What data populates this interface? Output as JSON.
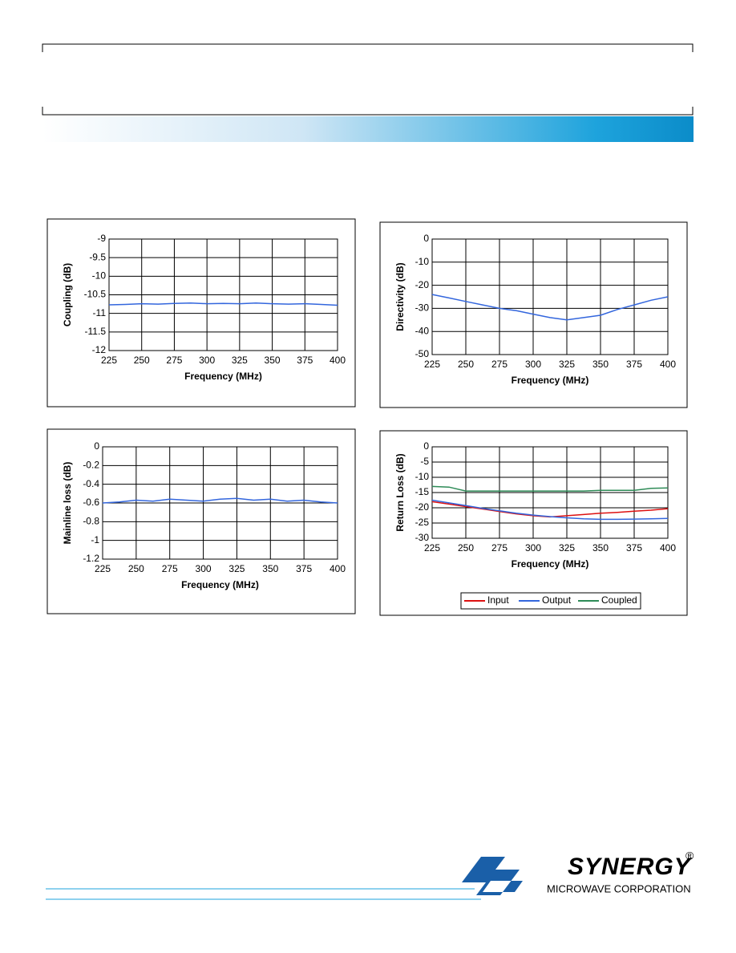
{
  "chart_data": [
    {
      "type": "line",
      "xlabel": "Frequency (MHz)",
      "ylabel": "Coupling (dB)",
      "x": [
        225,
        237.5,
        250,
        262.5,
        275,
        287.5,
        300,
        312.5,
        325,
        337.5,
        350,
        362.5,
        375,
        387.5,
        400
      ],
      "values": [
        -10.77,
        -10.76,
        -10.74,
        -10.75,
        -10.73,
        -10.72,
        -10.74,
        -10.73,
        -10.74,
        -10.72,
        -10.74,
        -10.75,
        -10.74,
        -10.76,
        -10.78
      ],
      "color": "#3366dd",
      "xlim": [
        225,
        400
      ],
      "ylim": [
        -12,
        -9
      ],
      "xticks": [
        225,
        250,
        275,
        300,
        325,
        350,
        375,
        400
      ],
      "yticks": [
        -9,
        -9.5,
        -10,
        -10.5,
        -11,
        -11.5,
        -12
      ],
      "grid": true
    },
    {
      "type": "line",
      "xlabel": "Frequency (MHz)",
      "ylabel": "Directivity (dB)",
      "x": [
        225,
        237.5,
        250,
        262.5,
        275,
        287.5,
        300,
        312.5,
        325,
        337.5,
        350,
        362.5,
        375,
        387.5,
        400
      ],
      "values": [
        -24,
        -25.5,
        -27,
        -28.5,
        -30,
        -31,
        -32.5,
        -34,
        -35,
        -34,
        -33,
        -30.5,
        -28.5,
        -26.5,
        -25
      ],
      "color": "#3366dd",
      "xlim": [
        225,
        400
      ],
      "ylim": [
        -50,
        0
      ],
      "xticks": [
        225,
        250,
        275,
        300,
        325,
        350,
        375,
        400
      ],
      "yticks": [
        0,
        -10,
        -20,
        -30,
        -40,
        -50
      ],
      "grid": true
    },
    {
      "type": "line",
      "xlabel": "Frequency (MHz)",
      "ylabel": "Mainline loss (dB)",
      "x": [
        225,
        237.5,
        250,
        262.5,
        275,
        287.5,
        300,
        312.5,
        325,
        337.5,
        350,
        362.5,
        375,
        387.5,
        400
      ],
      "values": [
        -0.6,
        -0.59,
        -0.57,
        -0.58,
        -0.56,
        -0.57,
        -0.58,
        -0.56,
        -0.55,
        -0.57,
        -0.56,
        -0.58,
        -0.57,
        -0.59,
        -0.6
      ],
      "color": "#3366dd",
      "xlim": [
        225,
        400
      ],
      "ylim": [
        -1.2,
        0
      ],
      "xticks": [
        225,
        250,
        275,
        300,
        325,
        350,
        375,
        400
      ],
      "yticks": [
        0,
        -0.2,
        -0.4,
        -0.6,
        -0.8,
        -1,
        -1.2
      ],
      "grid": true
    },
    {
      "type": "line",
      "xlabel": "Frequency (MHz)",
      "ylabel": "Return Loss (dB)",
      "x": [
        225,
        237.5,
        250,
        262.5,
        275,
        287.5,
        300,
        312.5,
        325,
        337.5,
        350,
        362.5,
        375,
        387.5,
        400
      ],
      "series": [
        {
          "name": "Input",
          "color": "#dd1111",
          "values": [
            -18,
            -18.8,
            -19.6,
            -20.4,
            -21.2,
            -22,
            -22.6,
            -23,
            -22.6,
            -22.2,
            -21.8,
            -21.5,
            -21.1,
            -20.8,
            -20.3
          ]
        },
        {
          "name": "Output",
          "color": "#3366dd",
          "values": [
            -17.5,
            -18.4,
            -19.3,
            -20.2,
            -21,
            -21.8,
            -22.4,
            -22.9,
            -23.3,
            -23.6,
            -23.8,
            -23.8,
            -23.7,
            -23.6,
            -23.5
          ]
        },
        {
          "name": "Coupled",
          "color": "#2e8b57",
          "values": [
            -13,
            -13.2,
            -14.5,
            -14.5,
            -14.5,
            -14.5,
            -14.5,
            -14.5,
            -14.5,
            -14.5,
            -14.3,
            -14.3,
            -14.3,
            -13.6,
            -13.5
          ]
        }
      ],
      "xlim": [
        225,
        400
      ],
      "ylim": [
        -30,
        0
      ],
      "xticks": [
        225,
        250,
        275,
        300,
        325,
        350,
        375,
        400
      ],
      "yticks": [
        0,
        -5,
        -10,
        -15,
        -20,
        -25,
        -30
      ],
      "grid": true,
      "legend": "bottom"
    }
  ],
  "logo": {
    "name": "SYNERGY",
    "mark": "®",
    "subtitle": "MICROWAVE CORPORATION"
  }
}
